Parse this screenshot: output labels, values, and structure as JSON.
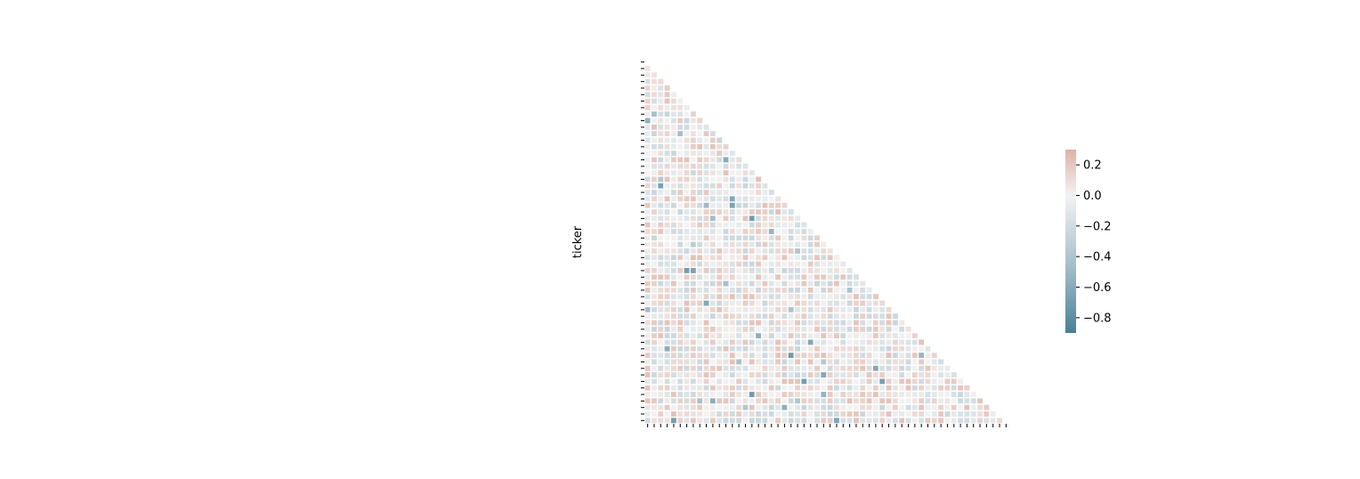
{
  "chart_data": {
    "type": "heatmap",
    "mask": "upper-triangle",
    "ylabel": "ticker",
    "xlabel": "",
    "n": 56,
    "x_tick_labels": "hidden",
    "y_tick_labels": "hidden",
    "colorbar": {
      "vmin": -0.9,
      "vmax": 0.3,
      "center": 0.0,
      "ticks": [
        0.2,
        0.0,
        -0.2,
        -0.4,
        -0.6,
        -0.8
      ],
      "tick_labels": [
        "0.2",
        "0.0",
        "−0.2",
        "−0.4",
        "−0.6",
        "−0.8"
      ]
    },
    "colors": {
      "negative": "#4a7f97",
      "center": "#f3f3f3",
      "positive": "#dfb1a4",
      "cell_border": "#ffffff"
    },
    "grid": false,
    "legend": "colorbar-right"
  }
}
